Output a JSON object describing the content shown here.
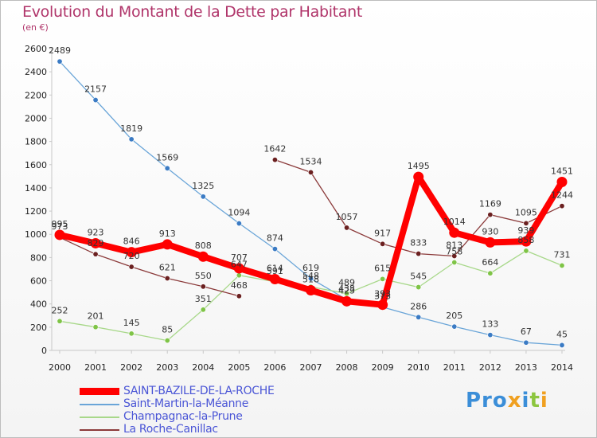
{
  "header": {
    "title": "Evolution du Montant de la Dette par Habitant",
    "unit": "(en €)"
  },
  "logo": {
    "text": "Proxiti",
    "colors": [
      "#3b8ed8",
      "#f0a020",
      "#8dc63f"
    ]
  },
  "chart_data": {
    "type": "line",
    "title": "Evolution du Montant de la Dette par Habitant",
    "subtitle": "(en €)",
    "xlabel": "",
    "ylabel": "",
    "x": [
      "2000",
      "2001",
      "2002",
      "2003",
      "2004",
      "2005",
      "2006",
      "2007",
      "2008",
      "2009",
      "2010",
      "2011",
      "2012",
      "2013",
      "2014"
    ],
    "ylim": [
      0,
      2600
    ],
    "yticks": [
      0,
      200,
      400,
      600,
      800,
      1000,
      1200,
      1400,
      1600,
      1800,
      2000,
      2200,
      2400,
      2600
    ],
    "grid": false,
    "legend": "bottom-left",
    "series": [
      {
        "name": "SAINT-BAZILE-DE-LA-ROCHE",
        "color": "#ff0000",
        "marker": "#ff0000",
        "width": "thick",
        "values": [
          995,
          923,
          846,
          913,
          808,
          707,
          614,
          518,
          423,
          393,
          1495,
          1014,
          930,
          939,
          1451
        ]
      },
      {
        "name": "Saint-Martin-la-Méanne",
        "color": "#6aa5d8",
        "marker": "#3b7bc4",
        "width": "thin",
        "values": [
          2489,
          2157,
          1819,
          1569,
          1325,
          1094,
          874,
          619,
          438,
          373,
          286,
          205,
          133,
          67,
          45
        ]
      },
      {
        "name": "Champagnac-la-Prune",
        "color": "#a8d88a",
        "marker": "#7fc447",
        "width": "thin",
        "values": [
          252,
          201,
          145,
          85,
          351,
          647,
          591,
          548,
          489,
          615,
          545,
          758,
          664,
          858,
          731
        ]
      },
      {
        "name": "La Roche-Canillac",
        "color": "#8b3a3a",
        "marker": "#6b2020",
        "width": "thin",
        "segments": [
          [
            0,
            5
          ],
          [
            6,
            14
          ]
        ],
        "values": [
          973,
          829,
          720,
          621,
          550,
          468,
          1642,
          1534,
          1057,
          917,
          833,
          813,
          1169,
          1095,
          1244
        ]
      }
    ]
  }
}
